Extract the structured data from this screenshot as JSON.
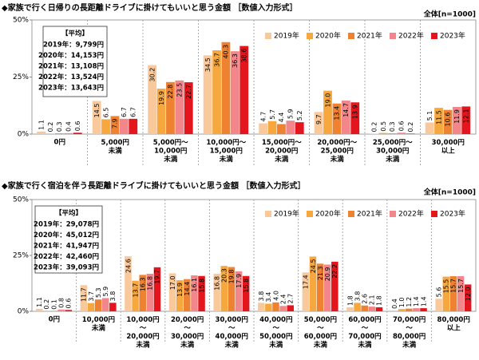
{
  "chart_data": [
    {
      "type": "bar",
      "title": "◆家族で行く日帰りの長距離ドライブに掛けてもいいと思う金額 ［数値入力形式］",
      "subtitle": "全体[n=1000]",
      "categories": [
        "0円",
        "5,000円\n未満",
        "5,000円～\n10,000円\n未満",
        "10,000円～\n15,000円\n未満",
        "15,000円～\n20,000円\n未満",
        "20,000円～\n25,000円\n未満",
        "25,000円～\n30,000円\n未満",
        "30,000円\n以上"
      ],
      "series": [
        {
          "name": "2019年",
          "color": "#f9c99c",
          "values": [
            1.1,
            14.5,
            30.2,
            34.5,
            4.7,
            9.7,
            0.2,
            5.1
          ],
          "value_labels": [
            "1.1",
            "14.5",
            "30.2",
            "34.5",
            "4.7",
            "9.7",
            "0.2",
            "5.1"
          ]
        },
        {
          "name": "2020年",
          "color": "#f6a83f",
          "values": [
            0.2,
            6.5,
            19.9,
            36.7,
            5.7,
            19.0,
            0.5,
            11.5
          ],
          "value_labels": [
            "0.2",
            "6.5",
            "19.9",
            "36.7",
            "5.7",
            "19.0",
            "0.5",
            "11.5"
          ]
        },
        {
          "name": "2021年",
          "color": "#ee8231",
          "values": [
            0.3,
            7.9,
            22.8,
            40.3,
            4.4,
            13.4,
            0.3,
            10.6
          ],
          "value_labels": [
            "0.3",
            "7.9",
            "22.8",
            "40.3",
            "4.4",
            "13.4",
            "0.3",
            "10.6"
          ]
        },
        {
          "name": "2022年",
          "color": "#f3868a",
          "values": [
            0.4,
            6.7,
            23.5,
            36.3,
            5.9,
            14.7,
            0.6,
            11.9
          ],
          "value_labels": [
            "0.4",
            "6.7",
            "23.5",
            "36.3",
            "5.9",
            "14.7",
            "0.6",
            "11.9"
          ]
        },
        {
          "name": "2023年",
          "color": "#e3151d",
          "values": [
            0.6,
            6.7,
            22.7,
            38.6,
            5.2,
            13.9,
            0.2,
            12.1
          ],
          "value_labels": [
            "0.6",
            "6.7",
            "22.7",
            "38.6",
            "5.2",
            "13.9",
            "0.2",
            "12.1"
          ]
        }
      ],
      "ylim": [
        0,
        50
      ],
      "yticks": [
        {
          "value": 0,
          "label": "0%"
        },
        {
          "value": 25,
          "label": "25%"
        },
        {
          "value": 50,
          "label": "50%"
        }
      ],
      "grid": false,
      "legend": "top-right",
      "average_title": "【平均】",
      "average_lines": [
        "2019年：9,799円",
        "2020年：14,153円",
        "2021年：13,108円",
        "2022年：13,524円",
        "2023年：13,643円"
      ]
    },
    {
      "type": "bar",
      "title": "◆家族で行く宿泊を伴う長距離ドライブに掛けてもいいと思う金額 ［数値入力形式］",
      "subtitle": "全体[n=1000]",
      "categories": [
        "0円",
        "10,000円\n未満",
        "10,000円\n～\n20,000円\n未満",
        "20,000円\n～\n30,000円\n未満",
        "30,000円\n～\n40,000円\n未満",
        "40,000円\n～\n50,000円\n未満",
        "50,000円\n～\n60,000円\n未満",
        "60,000円\n～\n70,000円\n未満",
        "70,000円\n～\n80,000円\n未満",
        "80,000円\n以上"
      ],
      "series": [
        {
          "name": "2019年",
          "color": "#f9c99c",
          "values": [
            1.1,
            11.7,
            24.6,
            17.0,
            16.8,
            3.8,
            17.4,
            1.8,
            0.4,
            5.6
          ],
          "value_labels": [
            "1.1",
            "11.7",
            "24.6",
            "17.0",
            "16.8",
            "3.8",
            "17.4",
            "1.8",
            "0.4",
            "5.6"
          ]
        },
        {
          "name": "2020年",
          "color": "#f6a83f",
          "values": [
            0.2,
            3.7,
            13.7,
            13.9,
            20.3,
            3.4,
            24.5,
            3.8,
            1.0,
            15.5
          ],
          "value_labels": [
            "0.2",
            "3.7",
            "13.7",
            "13.9",
            "20.3",
            "3.4",
            "24.5",
            "3.8",
            "1.0",
            "15.5"
          ]
        },
        {
          "name": "2021年",
          "color": "#ee8231",
          "values": [
            0.1,
            5.3,
            16.3,
            14.4,
            19.8,
            4.0,
            21.3,
            2.6,
            1.2,
            15.7
          ],
          "value_labels": [
            "0.1",
            "5.3",
            "16.3",
            "14.4",
            "19.8",
            "4.0",
            "21.3",
            "2.6",
            "1.2",
            "15.7"
          ]
        },
        {
          "name": "2022年",
          "color": "#f3868a",
          "values": [
            0.8,
            5.9,
            16.8,
            16.1,
            17.9,
            2.4,
            20.9,
            2.1,
            1.4,
            15.7
          ],
          "value_labels": [
            "0.8",
            "5.9",
            "16.8",
            "16.1",
            "17.9",
            "2.4",
            "20.9",
            "2.1",
            "1.4",
            "15.7"
          ]
        },
        {
          "name": "2023年",
          "color": "#e3151d",
          "values": [
            0.6,
            3.8,
            19.7,
            15.8,
            15.8,
            2.7,
            22.2,
            1.8,
            1.4,
            12.0
          ],
          "value_labels": [
            "0.6",
            "3.8",
            "19.7",
            "15.8",
            "15.8",
            "2.7",
            "22.2",
            "1.8",
            "1.4",
            "12.0"
          ]
        }
      ],
      "ylim": [
        0,
        50
      ],
      "yticks": [
        {
          "value": 0,
          "label": "0%"
        },
        {
          "value": 25,
          "label": "25%"
        },
        {
          "value": 50,
          "label": "50%"
        }
      ],
      "grid": false,
      "legend": "top-right",
      "average_title": "【平均】",
      "average_lines": [
        "2019年：29,078円",
        "2020年：45,012円",
        "2021年：41,947円",
        "2022年：42,460円",
        "2023年：39,093円"
      ]
    }
  ]
}
